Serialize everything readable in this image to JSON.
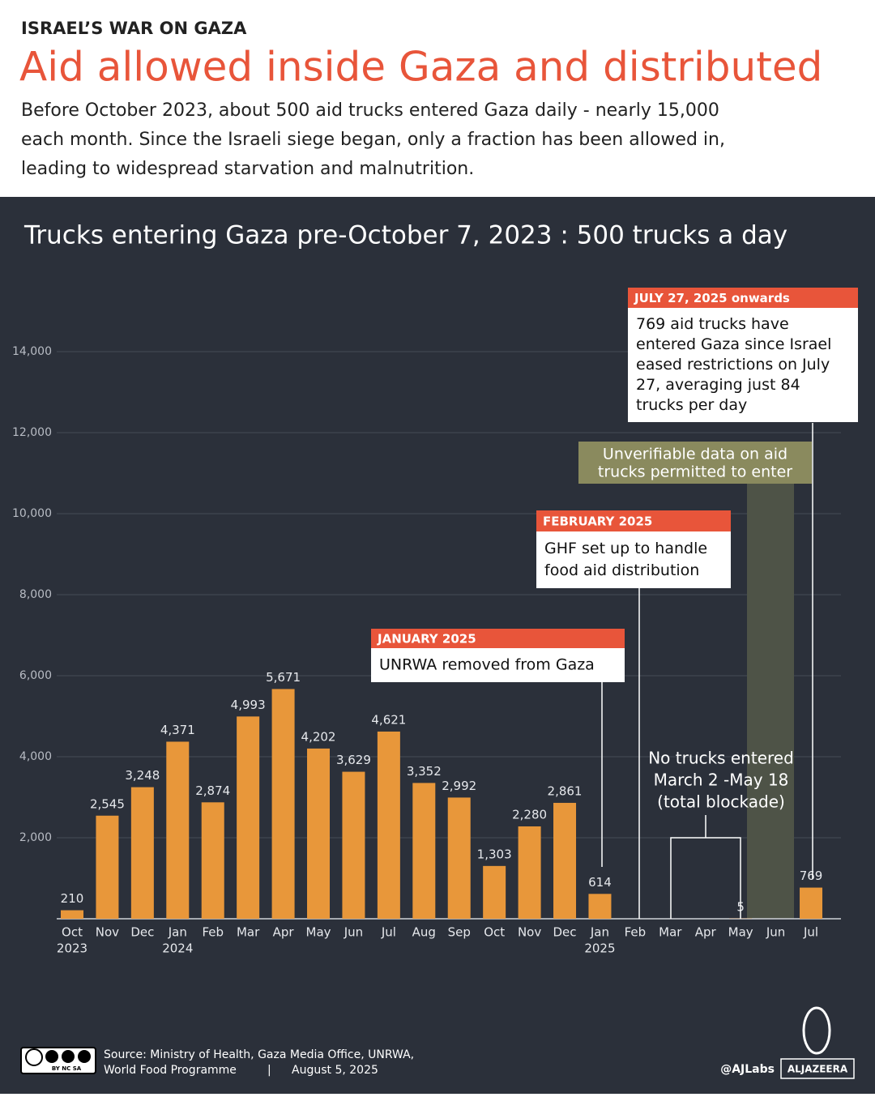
{
  "header": {
    "kicker": "ISRAEL’S WAR ON GAZA",
    "title": "Aid allowed inside Gaza and distributed",
    "subtitle_lines": [
      "Before October 2023, about 500 aid trucks entered Gaza daily - nearly 15,000",
      "each month. Since the Israeli siege began, only a fraction has been allowed in,",
      "leading to widespread starvation and malnutrition."
    ]
  },
  "chart_data": {
    "type": "bar",
    "title": "Trucks entering Gaza pre-October 7, 2023 : 500 trucks  a day",
    "categories": [
      "Oct",
      "Nov",
      "Dec",
      "Jan",
      "Feb",
      "Mar",
      "Apr",
      "May",
      "Jun",
      "Jul",
      "Aug",
      "Sep",
      "Oct",
      "Nov",
      "Dec",
      "Jan",
      "Feb",
      "Mar",
      "Apr",
      "May",
      "Jun",
      "Jul"
    ],
    "year_labels": [
      "2023",
      null,
      null,
      "2024",
      null,
      null,
      null,
      null,
      null,
      null,
      null,
      null,
      null,
      null,
      null,
      "2025",
      null,
      null,
      null,
      null,
      null,
      null
    ],
    "values": [
      210,
      2545,
      3248,
      4371,
      2874,
      4993,
      5671,
      4202,
      3629,
      4621,
      3352,
      2992,
      1303,
      2280,
      2861,
      614,
      null,
      null,
      null,
      5,
      null,
      769
    ],
    "value_labels": [
      "210",
      "2,545",
      "3,248",
      "4,371",
      "2,874",
      "4,993",
      "5,671",
      "4,202",
      "3,629",
      "4,621",
      "3,352",
      "2,992",
      "1,303",
      "2,280",
      "2,861",
      "614",
      null,
      null,
      null,
      "5",
      null,
      "769"
    ],
    "color": "#e8973a",
    "ylim": [
      0,
      14000
    ],
    "yticks": [
      {
        "value": 2000,
        "label": "2,000"
      },
      {
        "value": 4000,
        "label": "4,000"
      },
      {
        "value": 6000,
        "label": "6,000"
      },
      {
        "value": 8000,
        "label": "8,000"
      },
      {
        "value": 10000,
        "label": "10,000"
      },
      {
        "value": 12000,
        "label": "12,000"
      },
      {
        "value": 14000,
        "label": "14,000"
      }
    ],
    "grid": true,
    "annotations": [
      {
        "tag": "JANUARY 2025",
        "lines": [
          "UNRWA removed from Gaza"
        ]
      },
      {
        "tag": "FEBRUARY 2025",
        "lines": [
          "GHF set up to handle",
          "food aid distribution"
        ]
      },
      {
        "tag": "JULY 27, 2025 onwards",
        "lines": [
          "769 aid trucks have",
          "entered Gaza since Israel",
          "eased restrictions on July",
          "27, averaging just 84",
          "trucks per day"
        ]
      }
    ],
    "shaded_note": [
      "Unverifiable data on aid",
      "trucks permitted to enter"
    ],
    "blockade_note": [
      "No trucks entered",
      "March 2 -May 18",
      "(total blockade)"
    ]
  },
  "footer": {
    "license": "BY NC SA",
    "source_lines": [
      "Source:  Ministry of Health, Gaza Media Office, UNRWA,",
      "World Food Programme"
    ],
    "separator": "|",
    "date": "August 5, 2025",
    "handle": "@AJLabs",
    "brand": "ALJAZEERA"
  }
}
